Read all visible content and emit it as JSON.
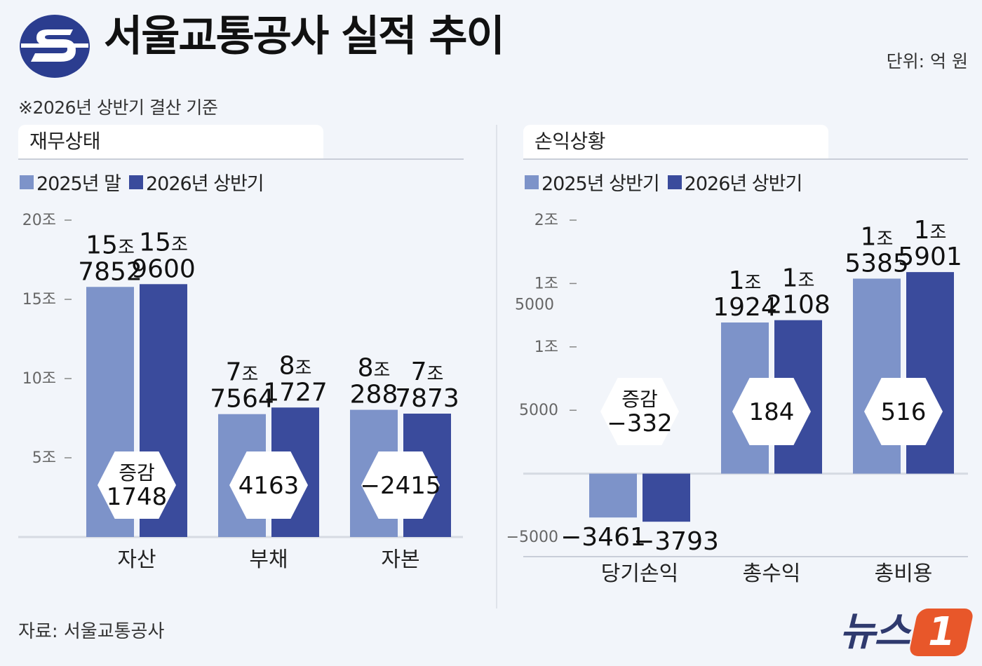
{
  "header": {
    "title": "서울교통공사 실적 추이",
    "unit": "단위: 억 원",
    "basis": "※2026년 상반기 결산 기준"
  },
  "footer": {
    "source": "자료: 서울교통공사",
    "brand": "뉴스",
    "brand_badge": "1"
  },
  "colors": {
    "light": "#7d93c9",
    "dark": "#3a4b9c",
    "hex_fill": "#ffffff"
  },
  "chart_data": [
    {
      "type": "bar",
      "title": "재무상태",
      "categories": [
        "자산",
        "부채",
        "자본"
      ],
      "series": [
        {
          "name": "2025년 말",
          "values": [
            157852,
            77564,
            80288
          ],
          "labels": [
            [
              "15조",
              "7852"
            ],
            [
              "7조",
              "7564"
            ],
            [
              "8조",
              "288"
            ]
          ]
        },
        {
          "name": "2026년 상반기",
          "values": [
            159600,
            81727,
            77873
          ],
          "labels": [
            [
              "15조",
              "9600"
            ],
            [
              "8조",
              "1727"
            ],
            [
              "7조",
              "7873"
            ]
          ]
        }
      ],
      "change_labels": [
        [
          "증감",
          "1748"
        ],
        [
          "4163"
        ],
        [
          "−2415"
        ]
      ],
      "ylim": [
        0,
        200000
      ],
      "yticks": [
        {
          "value": 50000,
          "label": "5조"
        },
        {
          "value": 100000,
          "label": "10조"
        },
        {
          "value": 150000,
          "label": "15조"
        },
        {
          "value": 200000,
          "label": "20조"
        }
      ]
    },
    {
      "type": "bar",
      "title": "손익상황",
      "categories": [
        "당기손익",
        "총수익",
        "총비용"
      ],
      "series": [
        {
          "name": "2025년 상반기",
          "values": [
            -3461,
            11924,
            15385
          ],
          "labels": [
            [
              "−3461"
            ],
            [
              "1조",
              "1924"
            ],
            [
              "1조",
              "5385"
            ]
          ]
        },
        {
          "name": "2026년 상반기",
          "values": [
            -3793,
            12108,
            15901
          ],
          "labels": [
            [
              "−3793"
            ],
            [
              "1조",
              "2108"
            ],
            [
              "1조",
              "5901"
            ]
          ]
        }
      ],
      "change_labels": [
        [
          "증감",
          "−332"
        ],
        [
          "184"
        ],
        [
          "516"
        ]
      ],
      "ylim": [
        -5000,
        20000
      ],
      "yticks": [
        {
          "value": -5000,
          "label": "−5000"
        },
        {
          "value": 5000,
          "label": "5000"
        },
        {
          "value": 10000,
          "label": "1조"
        },
        {
          "value": 15000,
          "label": "1조 5000"
        },
        {
          "value": 20000,
          "label": "2조"
        }
      ]
    }
  ]
}
